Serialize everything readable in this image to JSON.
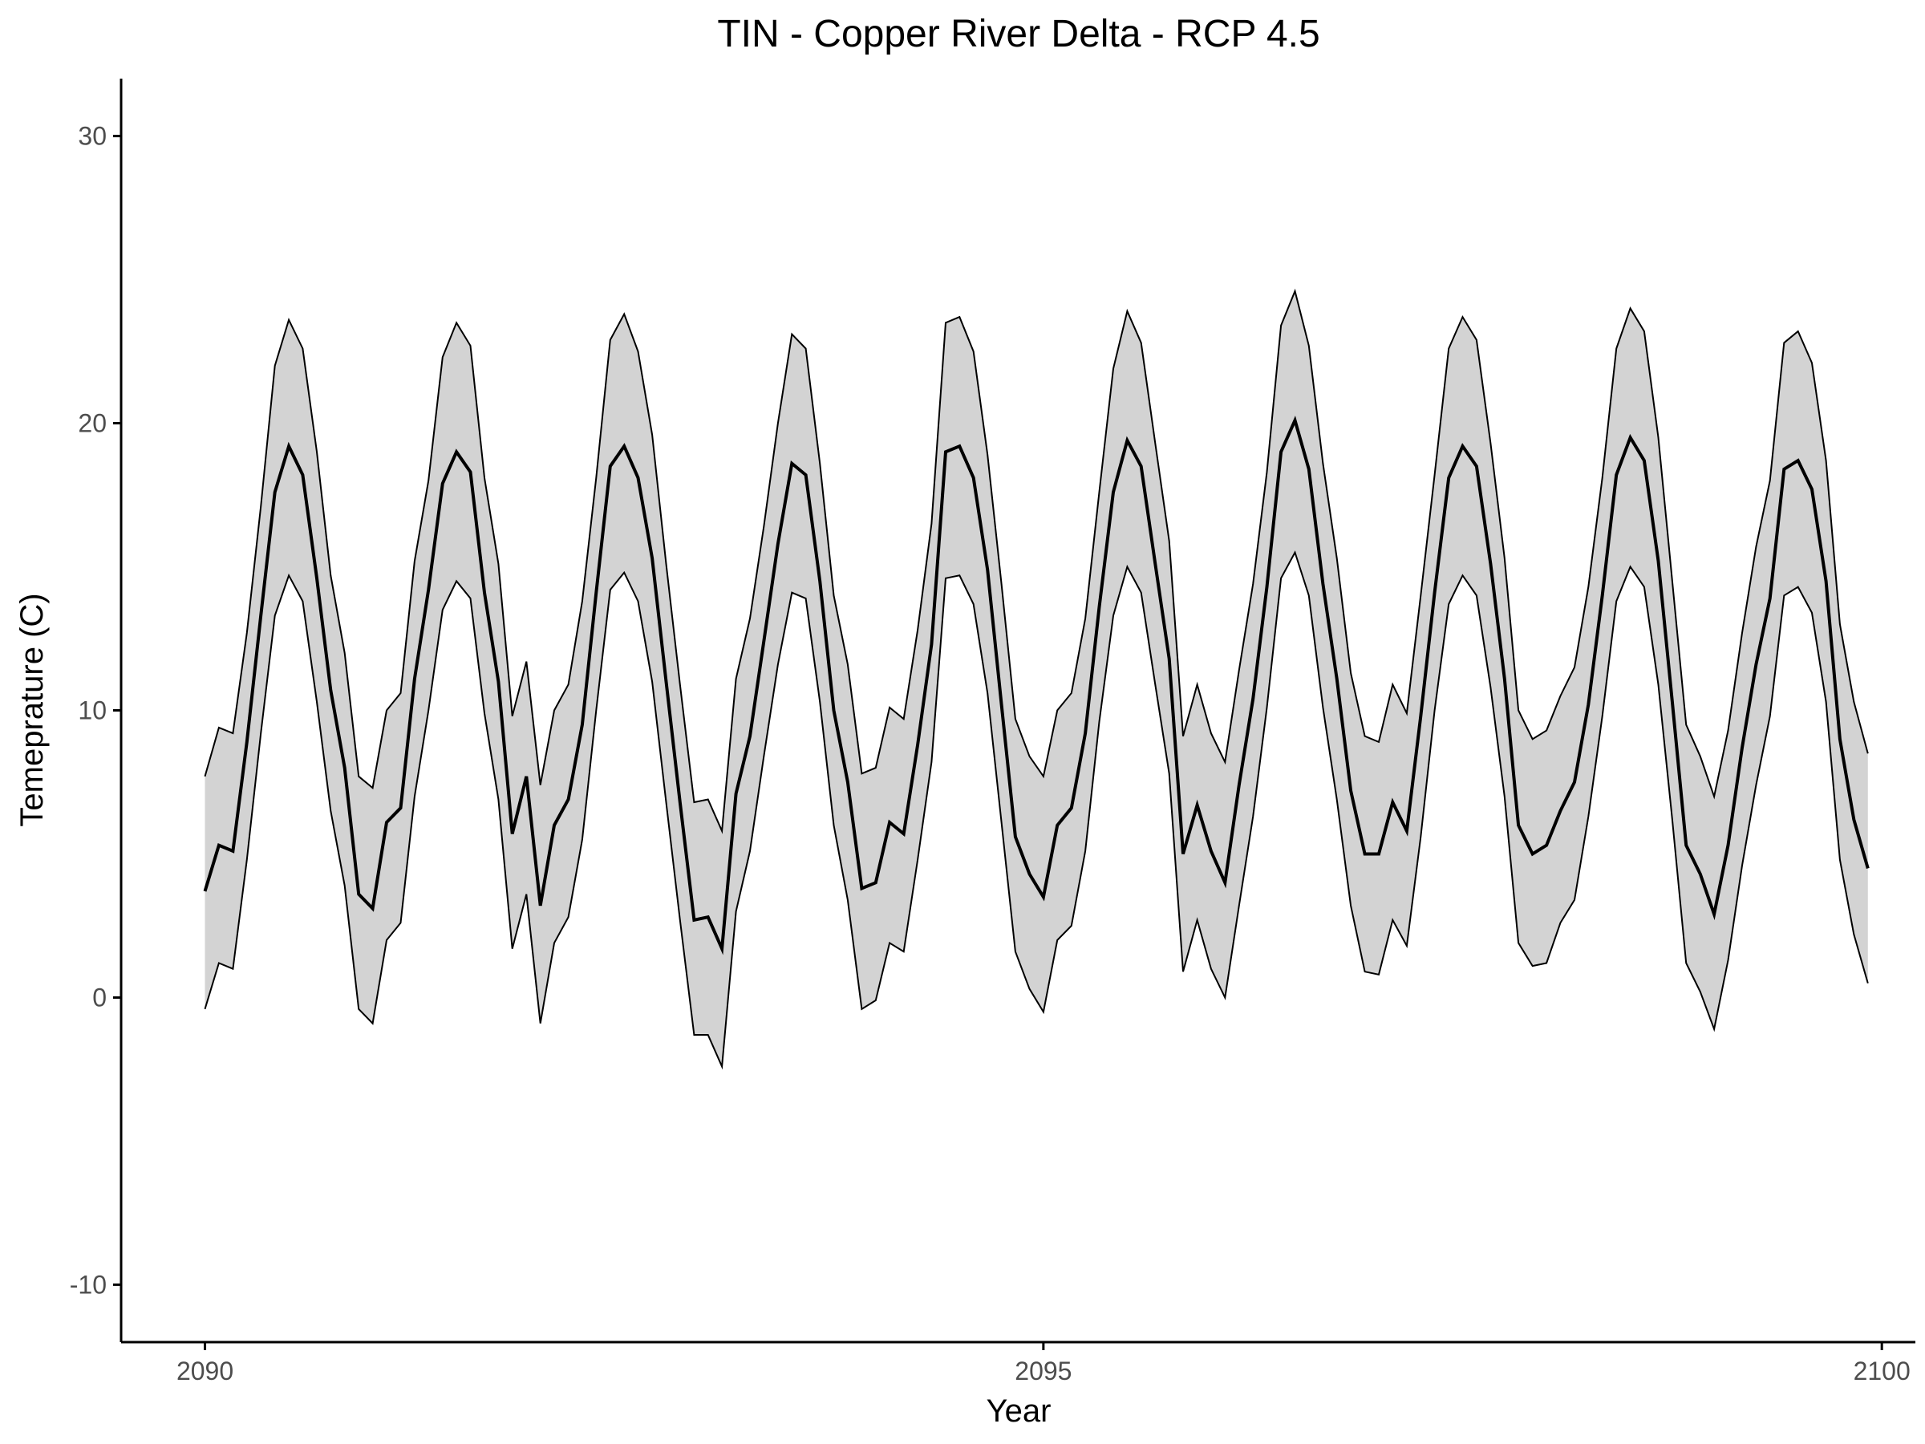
{
  "chart_data": {
    "type": "area",
    "title": "TIN - Copper River Delta - RCP 4.5",
    "xlabel": "Year",
    "ylabel": "Temeprature (C)",
    "xlim": [
      2089.5,
      2100.2
    ],
    "ylim": [
      -12,
      32
    ],
    "xticks": [
      2090,
      2095,
      2100
    ],
    "xtick_labels": [
      "2090",
      "2095",
      "2100"
    ],
    "yticks": [
      -10,
      0,
      10,
      20,
      30
    ],
    "ytick_labels": [
      "-10",
      "0",
      "10",
      "20",
      "30"
    ],
    "grid": false,
    "legend": "none",
    "colors": {
      "band_fill": "#d3d3d3",
      "band_outline": "#000000",
      "mean_line": "#000000",
      "text": "#000000",
      "tick_text": "#4d4d4d"
    },
    "x": [
      2090.0,
      2090.083,
      2090.167,
      2090.25,
      2090.333,
      2090.417,
      2090.5,
      2090.583,
      2090.667,
      2090.75,
      2090.833,
      2090.917,
      2091.0,
      2091.083,
      2091.167,
      2091.25,
      2091.333,
      2091.417,
      2091.5,
      2091.583,
      2091.667,
      2091.75,
      2091.833,
      2091.917,
      2092.0,
      2092.083,
      2092.167,
      2092.25,
      2092.333,
      2092.417,
      2092.5,
      2092.583,
      2092.667,
      2092.75,
      2092.833,
      2092.917,
      2093.0,
      2093.083,
      2093.167,
      2093.25,
      2093.333,
      2093.417,
      2093.5,
      2093.583,
      2093.667,
      2093.75,
      2093.833,
      2093.917,
      2094.0,
      2094.083,
      2094.167,
      2094.25,
      2094.333,
      2094.417,
      2094.5,
      2094.583,
      2094.667,
      2094.75,
      2094.833,
      2094.917,
      2095.0,
      2095.083,
      2095.167,
      2095.25,
      2095.333,
      2095.417,
      2095.5,
      2095.583,
      2095.667,
      2095.75,
      2095.833,
      2095.917,
      2096.0,
      2096.083,
      2096.167,
      2096.25,
      2096.333,
      2096.417,
      2096.5,
      2096.583,
      2096.667,
      2096.75,
      2096.833,
      2096.917,
      2097.0,
      2097.083,
      2097.167,
      2097.25,
      2097.333,
      2097.417,
      2097.5,
      2097.583,
      2097.667,
      2097.75,
      2097.833,
      2097.917,
      2098.0,
      2098.083,
      2098.167,
      2098.25,
      2098.333,
      2098.417,
      2098.5,
      2098.583,
      2098.667,
      2098.75,
      2098.833,
      2098.917,
      2099.0,
      2099.083,
      2099.167,
      2099.25,
      2099.333,
      2099.417,
      2099.5,
      2099.583,
      2099.667,
      2099.75,
      2099.833,
      2099.917
    ],
    "series": [
      {
        "role": "mean",
        "values": [
          3.7,
          5.3,
          5.1,
          8.9,
          13.3,
          17.6,
          19.2,
          18.2,
          14.6,
          10.7,
          8.0,
          3.6,
          3.1,
          6.1,
          6.6,
          11.1,
          14.2,
          17.9,
          19.0,
          18.3,
          14.1,
          11.0,
          5.7,
          7.7,
          3.2,
          6.0,
          6.9,
          9.5,
          14.1,
          18.5,
          19.2,
          18.1,
          15.3,
          11.0,
          6.8,
          2.7,
          2.8,
          1.7,
          7.1,
          9.1,
          12.4,
          15.8,
          18.6,
          18.2,
          14.5,
          10.0,
          7.5,
          3.8,
          4.0,
          6.1,
          5.7,
          8.8,
          12.3,
          19.0,
          19.2,
          18.1,
          14.9,
          10.2,
          5.6,
          4.3,
          3.5,
          6.0,
          6.6,
          9.2,
          13.6,
          17.6,
          19.4,
          18.5,
          15.1,
          11.8,
          5.0,
          6.7,
          5.1,
          4.0,
          7.4,
          10.4,
          14.3,
          19.0,
          20.1,
          18.4,
          14.4,
          11.1,
          7.2,
          5.0,
          5.0,
          6.8,
          5.8,
          9.8,
          14.1,
          18.1,
          19.2,
          18.5,
          15.1,
          11.1,
          6.0,
          5.0,
          5.3,
          6.5,
          7.5,
          10.2,
          14.0,
          18.2,
          19.5,
          18.7,
          15.2,
          10.3,
          5.3,
          4.3,
          2.9,
          5.3,
          8.7,
          11.6,
          13.9,
          18.4,
          18.7,
          17.7,
          14.5,
          9.0,
          6.2,
          4.5
        ]
      },
      {
        "role": "upper",
        "values": [
          7.7,
          9.4,
          9.2,
          12.7,
          17.1,
          22.0,
          23.6,
          22.6,
          19.0,
          14.7,
          12.0,
          7.7,
          7.3,
          10.0,
          10.6,
          15.2,
          18.0,
          22.3,
          23.5,
          22.7,
          18.1,
          15.1,
          9.8,
          11.7,
          7.4,
          10.0,
          10.9,
          13.8,
          18.1,
          22.9,
          23.8,
          22.5,
          19.6,
          15.1,
          10.9,
          6.8,
          6.9,
          5.8,
          11.1,
          13.2,
          16.4,
          20.0,
          23.1,
          22.6,
          18.6,
          14.0,
          11.6,
          7.8,
          8.0,
          10.1,
          9.7,
          12.8,
          16.5,
          23.5,
          23.7,
          22.5,
          18.9,
          14.4,
          9.7,
          8.4,
          7.7,
          10.0,
          10.6,
          13.2,
          17.6,
          21.9,
          23.9,
          22.8,
          19.3,
          15.9,
          9.1,
          10.9,
          9.2,
          8.2,
          11.4,
          14.4,
          18.3,
          23.4,
          24.6,
          22.7,
          18.6,
          15.3,
          11.3,
          9.1,
          8.9,
          10.9,
          9.9,
          14.0,
          18.2,
          22.6,
          23.7,
          22.9,
          19.3,
          15.3,
          10.0,
          9.0,
          9.3,
          10.5,
          11.5,
          14.3,
          18.1,
          22.6,
          24.0,
          23.2,
          19.5,
          14.5,
          9.5,
          8.4,
          7.0,
          9.3,
          12.7,
          15.7,
          18.0,
          22.8,
          23.2,
          22.1,
          18.7,
          13.0,
          10.3,
          8.5
        ]
      },
      {
        "role": "lower",
        "values": [
          -0.4,
          1.2,
          1.0,
          4.8,
          9.2,
          13.3,
          14.7,
          13.8,
          10.3,
          6.5,
          3.9,
          -0.4,
          -0.9,
          2.0,
          2.6,
          7.0,
          10.0,
          13.5,
          14.5,
          13.9,
          9.9,
          6.9,
          1.7,
          3.6,
          -0.9,
          1.9,
          2.8,
          5.5,
          10.0,
          14.2,
          14.8,
          13.8,
          11.0,
          6.8,
          2.7,
          -1.3,
          -1.3,
          -2.4,
          3.0,
          5.1,
          8.4,
          11.6,
          14.1,
          13.9,
          10.3,
          6.0,
          3.4,
          -0.4,
          -0.1,
          1.9,
          1.6,
          4.8,
          8.2,
          14.6,
          14.7,
          13.7,
          10.6,
          6.1,
          1.6,
          0.3,
          -0.5,
          2.0,
          2.5,
          5.1,
          9.6,
          13.3,
          15.0,
          14.1,
          10.9,
          7.8,
          0.9,
          2.7,
          1.0,
          0.0,
          3.2,
          6.3,
          10.1,
          14.6,
          15.5,
          14.0,
          10.1,
          6.9,
          3.2,
          0.9,
          0.8,
          2.7,
          1.8,
          5.6,
          10.0,
          13.7,
          14.7,
          14.0,
          10.8,
          7.0,
          1.9,
          1.1,
          1.2,
          2.6,
          3.4,
          6.3,
          9.8,
          13.8,
          15.0,
          14.3,
          10.9,
          6.2,
          1.2,
          0.2,
          -1.1,
          1.3,
          4.6,
          7.4,
          9.8,
          14.0,
          14.3,
          13.4,
          10.3,
          4.8,
          2.2,
          0.5
        ]
      }
    ]
  }
}
